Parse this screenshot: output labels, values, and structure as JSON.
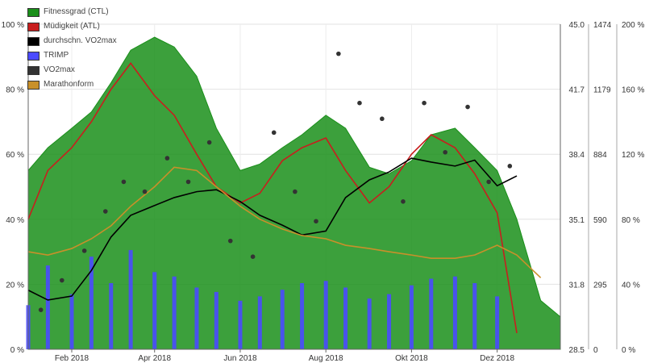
{
  "chart_data": {
    "type": "area",
    "x_axis": {
      "type": "date",
      "range": [
        "2018-01-01",
        "2019-01-15"
      ],
      "tick_labels": [
        "Feb 2018",
        "Apr 2018",
        "Jun 2018",
        "Aug 2018",
        "Okt 2018",
        "Dez 2018"
      ],
      "tick_dates": [
        "2018-02-01",
        "2018-04-01",
        "2018-06-01",
        "2018-08-01",
        "2018-10-01",
        "2018-12-01"
      ]
    },
    "y_axes": [
      {
        "side": "left",
        "range": [
          0,
          100
        ],
        "tick_labels": [
          "0 %",
          "20 %",
          "40 %",
          "60 %",
          "80 %",
          "100 %"
        ]
      },
      {
        "side": "right",
        "range": [
          28.5,
          45.0
        ],
        "tick_labels": [
          "28.5",
          "31.8",
          "35.1",
          "38.4",
          "41.7",
          "45.0"
        ]
      },
      {
        "side": "right",
        "range": [
          0,
          1474
        ],
        "tick_labels": [
          "0",
          "295",
          "590",
          "884",
          "1179",
          "1474"
        ]
      },
      {
        "side": "right",
        "range": [
          0,
          200
        ],
        "tick_labels": [
          "0 %",
          "40 %",
          "80 %",
          "120 %",
          "160 %",
          "200 %"
        ]
      }
    ],
    "grid": true,
    "legend": {
      "position": "top-left"
    },
    "series": [
      {
        "name": "Fitnessgrad (CTL)",
        "color": "#1a8f1a",
        "axis": "percent",
        "style": "area",
        "x": [
          "2018-01-01",
          "2018-01-15",
          "2018-02-01",
          "2018-02-15",
          "2018-03-01",
          "2018-03-15",
          "2018-04-01",
          "2018-04-15",
          "2018-05-01",
          "2018-05-15",
          "2018-06-01",
          "2018-06-15",
          "2018-07-01",
          "2018-07-15",
          "2018-08-01",
          "2018-08-15",
          "2018-09-01",
          "2018-09-15",
          "2018-10-01",
          "2018-10-15",
          "2018-11-01",
          "2018-11-15",
          "2018-12-01",
          "2018-12-15",
          "2019-01-01",
          "2019-01-15"
        ],
        "values": [
          55,
          62,
          68,
          73,
          82,
          92,
          96,
          93,
          84,
          68,
          55,
          57,
          62,
          66,
          72,
          68,
          56,
          54,
          58,
          66,
          68,
          62,
          55,
          40,
          15,
          10
        ]
      },
      {
        "name": "Müdigkeit (ATL)",
        "color": "#c81e1e",
        "axis": "percent",
        "style": "line",
        "x": [
          "2018-01-01",
          "2018-01-15",
          "2018-02-01",
          "2018-02-15",
          "2018-03-01",
          "2018-03-15",
          "2018-04-01",
          "2018-04-15",
          "2018-05-01",
          "2018-05-15",
          "2018-06-01",
          "2018-06-15",
          "2018-07-01",
          "2018-07-15",
          "2018-08-01",
          "2018-08-15",
          "2018-09-01",
          "2018-09-15",
          "2018-10-01",
          "2018-10-15",
          "2018-11-01",
          "2018-11-15",
          "2018-12-01",
          "2018-12-15"
        ],
        "values": [
          40,
          55,
          62,
          70,
          80,
          88,
          78,
          72,
          60,
          50,
          45,
          48,
          58,
          62,
          65,
          55,
          45,
          50,
          60,
          66,
          62,
          54,
          42,
          5
        ]
      },
      {
        "name": "durchschn. VO2max",
        "color": "#000000",
        "axis": "vo2",
        "style": "line",
        "x": [
          "2018-01-01",
          "2018-01-15",
          "2018-02-01",
          "2018-02-15",
          "2018-03-01",
          "2018-03-15",
          "2018-04-01",
          "2018-04-15",
          "2018-05-01",
          "2018-05-15",
          "2018-06-01",
          "2018-06-15",
          "2018-07-01",
          "2018-07-15",
          "2018-08-01",
          "2018-08-15",
          "2018-09-01",
          "2018-09-15",
          "2018-10-01",
          "2018-10-15",
          "2018-11-01",
          "2018-11-15",
          "2018-12-01",
          "2018-12-15"
        ],
        "values": [
          31.5,
          31.0,
          31.2,
          32.5,
          34.2,
          35.3,
          35.8,
          36.2,
          36.5,
          36.6,
          36.0,
          35.3,
          34.8,
          34.3,
          34.5,
          36.2,
          37.1,
          37.5,
          38.2,
          38.0,
          37.8,
          38.1,
          36.8,
          37.3
        ]
      },
      {
        "name": "TRIMP",
        "color": "#4a4aff",
        "axis": "trimp",
        "style": "bar",
        "x": [
          "2018-01-01",
          "2018-01-15",
          "2018-02-01",
          "2018-02-15",
          "2018-03-01",
          "2018-03-15",
          "2018-04-01",
          "2018-04-15",
          "2018-05-01",
          "2018-05-15",
          "2018-06-01",
          "2018-06-15",
          "2018-07-01",
          "2018-07-15",
          "2018-08-01",
          "2018-08-15",
          "2018-09-01",
          "2018-09-15",
          "2018-10-01",
          "2018-10-15",
          "2018-11-01",
          "2018-11-15",
          "2018-12-01"
        ],
        "values": [
          200,
          380,
          250,
          420,
          300,
          450,
          350,
          330,
          280,
          260,
          220,
          240,
          270,
          300,
          310,
          280,
          230,
          250,
          290,
          320,
          330,
          300,
          240
        ]
      },
      {
        "name": "VO2max",
        "color": "#333333",
        "axis": "vo2",
        "style": "scatter",
        "x": [
          "2018-01-10",
          "2018-01-25",
          "2018-02-10",
          "2018-02-25",
          "2018-03-10",
          "2018-03-25",
          "2018-04-10",
          "2018-04-25",
          "2018-05-10",
          "2018-05-25",
          "2018-06-10",
          "2018-06-25",
          "2018-07-10",
          "2018-07-25",
          "2018-08-10",
          "2018-08-25",
          "2018-09-10",
          "2018-09-25",
          "2018-10-10",
          "2018-10-25",
          "2018-11-10",
          "2018-11-25",
          "2018-12-10"
        ],
        "values": [
          30.5,
          32.0,
          33.5,
          35.5,
          37.0,
          36.5,
          38.2,
          37.0,
          39.0,
          34.0,
          33.2,
          39.5,
          36.5,
          35.0,
          43.5,
          41.0,
          40.2,
          36.0,
          41.0,
          38.5,
          40.8,
          37.0,
          37.8
        ]
      },
      {
        "name": "Marathonform",
        "color": "#c8902a",
        "axis": "percent",
        "style": "line",
        "x": [
          "2018-01-01",
          "2018-01-15",
          "2018-02-01",
          "2018-02-15",
          "2018-03-01",
          "2018-03-15",
          "2018-04-01",
          "2018-04-15",
          "2018-05-01",
          "2018-05-15",
          "2018-06-01",
          "2018-06-15",
          "2018-07-01",
          "2018-07-15",
          "2018-08-01",
          "2018-08-15",
          "2018-09-01",
          "2018-09-15",
          "2018-10-01",
          "2018-10-15",
          "2018-11-01",
          "2018-11-15",
          "2018-12-01",
          "2018-12-15",
          "2019-01-01"
        ],
        "values": [
          30,
          29,
          31,
          34,
          38,
          44,
          50,
          56,
          55,
          50,
          44,
          40,
          37,
          35,
          34,
          32,
          31,
          30,
          29,
          28,
          28,
          29,
          32,
          29,
          22
        ]
      }
    ]
  }
}
